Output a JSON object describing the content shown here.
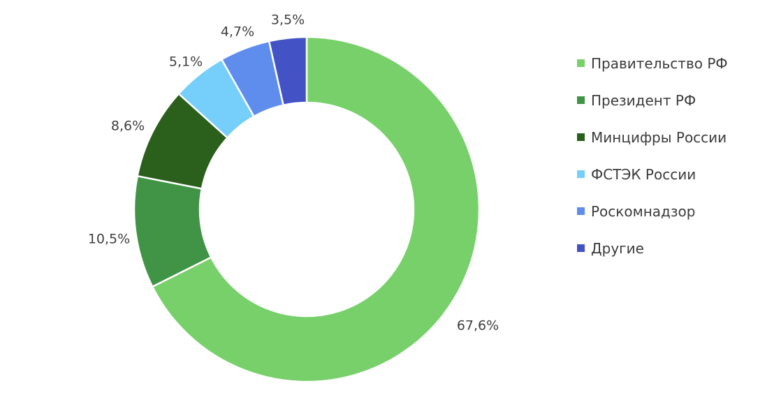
{
  "chart_data": {
    "type": "pie",
    "donut": true,
    "legend_position": "right",
    "categories": [
      "Правительство РФ",
      "Президент РФ",
      "Минцифры России",
      "ФСТЭК России",
      "Роскомнадзор",
      "Другие"
    ],
    "values": [
      67.6,
      10.5,
      8.6,
      5.1,
      4.7,
      3.5
    ],
    "data_labels": [
      "67,6%",
      "10,5%",
      "8,6%",
      "5,1%",
      "4,7%",
      "3,5%"
    ],
    "colors": [
      "#77d06a",
      "#419446",
      "#2a5f1c",
      "#76cffa",
      "#5f8ded",
      "#4352c5"
    ]
  }
}
